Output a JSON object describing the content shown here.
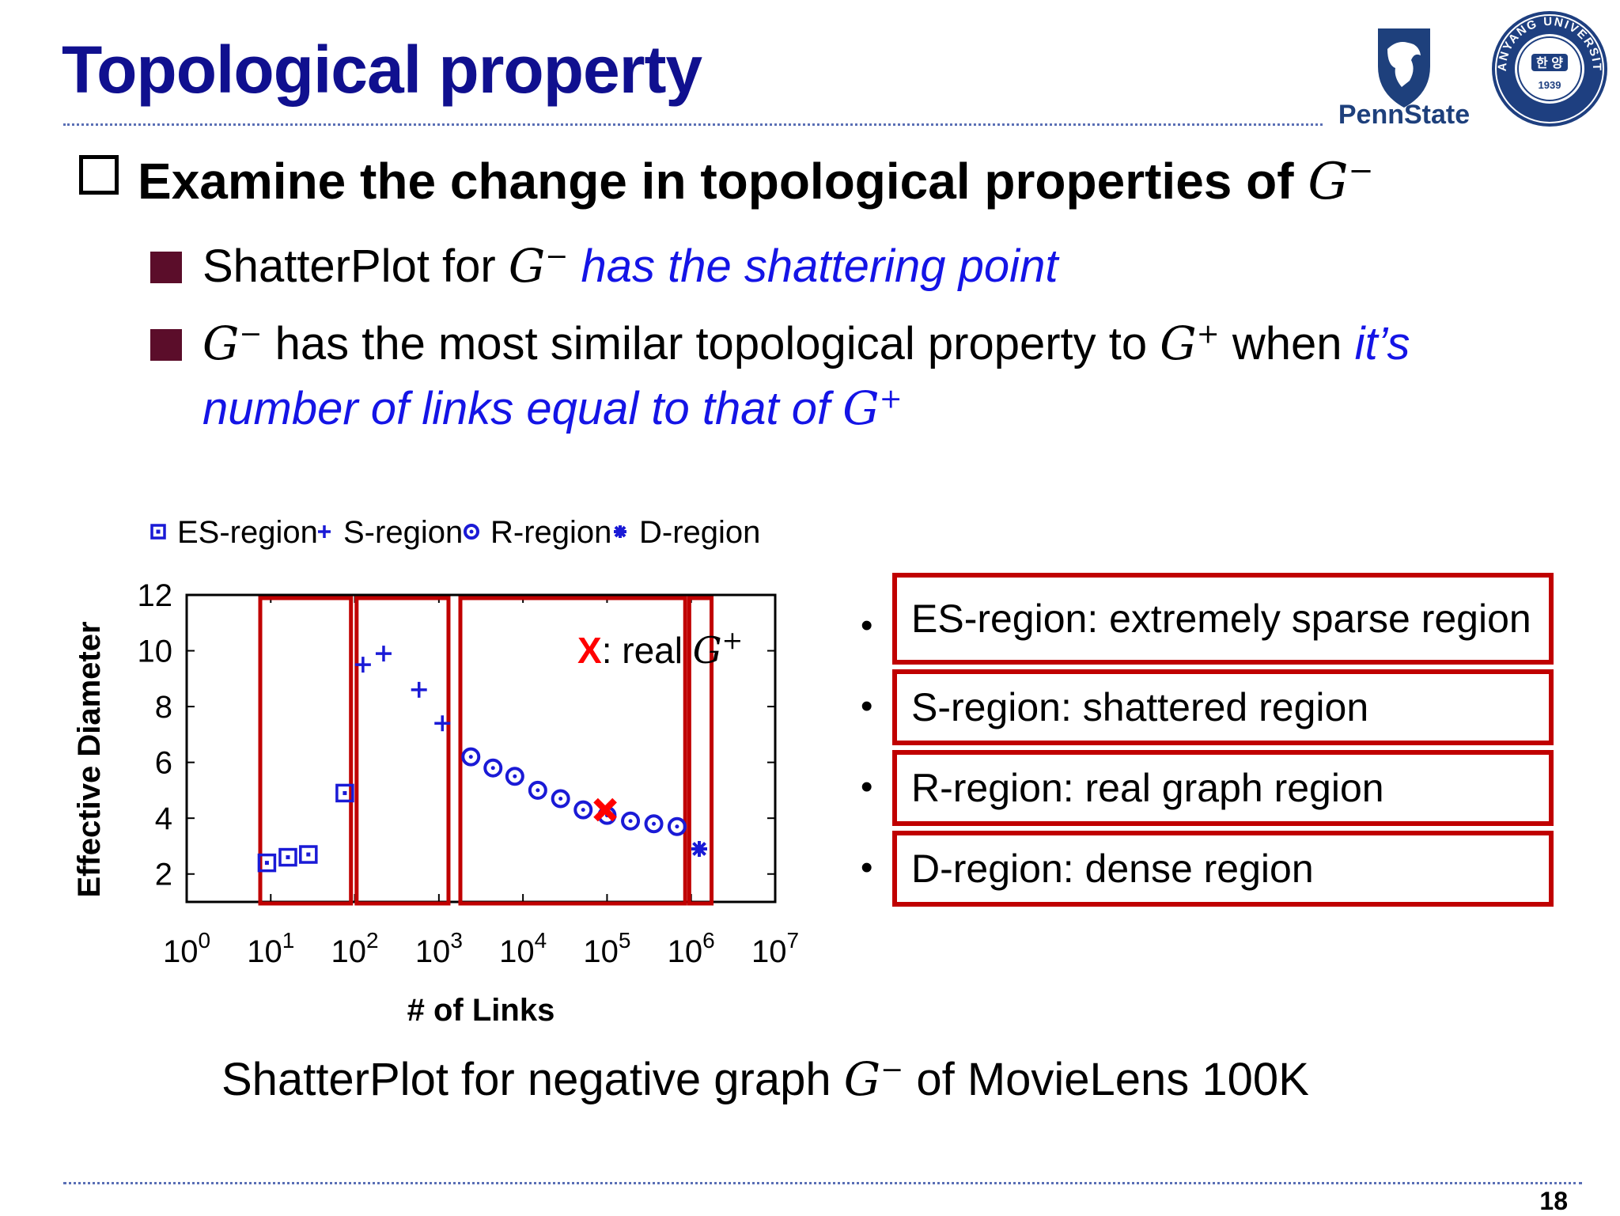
{
  "slide": {
    "title": "Topological property",
    "main_point": {
      "text": "Examine the change in topological properties of ",
      "math": "G",
      "math_sup": "−"
    },
    "bullets": [
      {
        "text": "ShatterPlot for ",
        "math": "G",
        "math_sup": "−",
        "highlight": " has the shattering point"
      },
      {
        "math1": "G",
        "math1_sup": "−",
        "text": " has the most similar topological property to ",
        "math2": "G",
        "math2_sup": "+",
        "text2": " when ",
        "highlight_line1": "it’s",
        "highlight_line2": "number of links equal to that of ",
        "math3": "G",
        "math3_sup": "+"
      }
    ],
    "caption": {
      "text": "ShatterPlot for negative graph ",
      "math": "G",
      "math_sup": "−",
      "text2": " of MovieLens 100K"
    },
    "page_number": "18",
    "logos": {
      "pennstate": "PennState",
      "hanyang": "HANYANG UNIVERSITY",
      "hanyang_center": "한 양",
      "hanyang_year": "1939"
    },
    "region_definitions": [
      "ES-region: extremely sparse region",
      "S-region: shattered region",
      "R-region: real graph region",
      "D-region: dense region"
    ],
    "colors": {
      "title": "#10108f",
      "highlight": "#1414e6",
      "region_box": "#c00000",
      "series": "#1a1ad6",
      "real_marker": "#ff0000"
    }
  },
  "chart_data": {
    "type": "scatter",
    "xlabel": "# of Links",
    "ylabel": "Effective Diameter",
    "x_scale": "log10",
    "xlim": [
      1,
      10000000
    ],
    "ylim": [
      1,
      12
    ],
    "x_ticks": [
      {
        "base": "10",
        "exp": "0"
      },
      {
        "base": "10",
        "exp": "1"
      },
      {
        "base": "10",
        "exp": "2"
      },
      {
        "base": "10",
        "exp": "3"
      },
      {
        "base": "10",
        "exp": "4"
      },
      {
        "base": "10",
        "exp": "5"
      },
      {
        "base": "10",
        "exp": "6"
      },
      {
        "base": "10",
        "exp": "7"
      }
    ],
    "y_ticks": [
      "2",
      "4",
      "6",
      "8",
      "10",
      "12"
    ],
    "legend_position": "top",
    "series": [
      {
        "name": "ES-region",
        "marker": "square",
        "points": [
          [
            9,
            2.4
          ],
          [
            16,
            2.6
          ],
          [
            28,
            2.7
          ],
          [
            76,
            4.9
          ]
        ]
      },
      {
        "name": "S-region",
        "marker": "plus",
        "points": [
          [
            125,
            9.5
          ],
          [
            220,
            9.9
          ],
          [
            580,
            8.6
          ],
          [
            1100,
            7.4
          ]
        ]
      },
      {
        "name": "R-region",
        "marker": "circle",
        "points": [
          [
            2400,
            6.2
          ],
          [
            4400,
            5.8
          ],
          [
            8000,
            5.5
          ],
          [
            15000,
            5.0
          ],
          [
            28000,
            4.7
          ],
          [
            52000,
            4.3
          ],
          [
            100000,
            4.1
          ],
          [
            190000,
            3.9
          ],
          [
            360000,
            3.8
          ],
          [
            680000,
            3.7
          ]
        ]
      },
      {
        "name": "D-region",
        "marker": "star",
        "points": [
          [
            1250000,
            2.9
          ]
        ]
      }
    ],
    "real_point": {
      "label_marker": "X",
      "label_text": ": real ",
      "math": "G",
      "math_sup": "+",
      "point": [
        95000,
        4.3
      ]
    },
    "region_boxes": [
      {
        "name": "ES-region",
        "x_range": [
          7.5,
          90
        ]
      },
      {
        "name": "S-region",
        "x_range": [
          105,
          1300
        ]
      },
      {
        "name": "R-region",
        "x_range": [
          1800,
          850000
        ]
      },
      {
        "name": "D-region",
        "x_range": [
          950000,
          1750000
        ]
      }
    ]
  }
}
